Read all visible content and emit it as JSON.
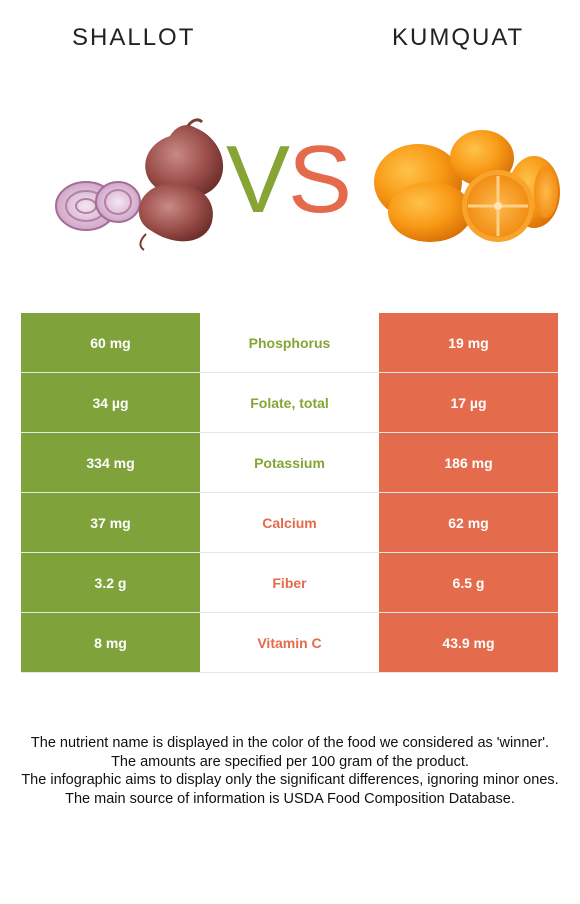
{
  "foods": {
    "left": {
      "name": "SHALLOT",
      "color": "#7fa23a"
    },
    "right": {
      "name": "KUMQUAT",
      "color": "#e46c4c"
    }
  },
  "vs": {
    "v": "V",
    "s": "S"
  },
  "rows": [
    {
      "left": "60 mg",
      "nutrient": "Phosphorus",
      "right": "19 mg",
      "winner": "left"
    },
    {
      "left": "34 µg",
      "nutrient": "Folate, total",
      "right": "17 µg",
      "winner": "left"
    },
    {
      "left": "334 mg",
      "nutrient": "Potassium",
      "right": "186 mg",
      "winner": "left"
    },
    {
      "left": "37 mg",
      "nutrient": "Calcium",
      "right": "62 mg",
      "winner": "right"
    },
    {
      "left": "3.2 g",
      "nutrient": "Fiber",
      "right": "6.5 g",
      "winner": "right"
    },
    {
      "left": "8 mg",
      "nutrient": "Vitamin C",
      "right": "43.9 mg",
      "winner": "right"
    }
  ],
  "footnotes": [
    "The nutrient name is displayed in the color of the food we considered as 'winner'.",
    "The amounts are specified per 100 gram of the product.",
    "The infographic aims to display only the significant differences, ignoring minor ones.",
    "The main source of information is USDA Food Composition Database."
  ],
  "icons": {
    "left_image": "shallot-illustration",
    "right_image": "kumquat-illustration"
  }
}
